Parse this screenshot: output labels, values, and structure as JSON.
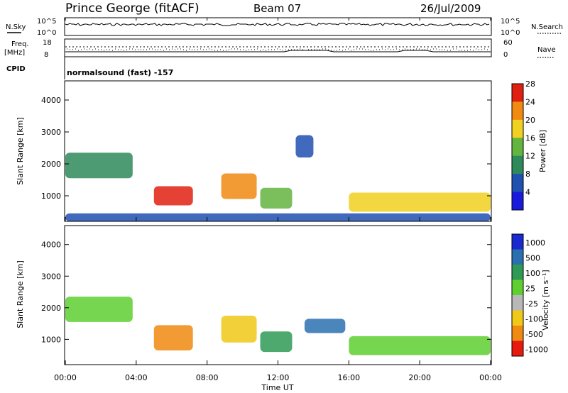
{
  "header": {
    "station": "Prince George (fitACF)",
    "beam": "Beam 07",
    "date": "26/Jul/2009"
  },
  "parameter_panels": {
    "nsky_label": "N.Sky",
    "nsky_ticks": [
      "10^5",
      "10^0"
    ],
    "nsearch_label": "N.Search",
    "nsearch_ticks": [
      "10^5",
      "10^0"
    ],
    "freq_label": "Freq.",
    "freq_unit": "[MHz]",
    "freq_ticks": [
      "18",
      "8"
    ],
    "nave_label": "Nave",
    "nave_ticks": [
      "60",
      "0"
    ],
    "cpid_label": "CPID",
    "cpid_text": "normalsound (fast) -157"
  },
  "chart_data": [
    {
      "type": "heatmap",
      "panel": "power",
      "ylabel": "Slant Range [km]",
      "yticks": [
        "1000",
        "2000",
        "3000",
        "4000"
      ],
      "ylim": [
        200,
        4600
      ],
      "xlim": [
        "00:00",
        "24:00"
      ],
      "colorbar": {
        "label": "Power [dB]",
        "ticks": [
          "4",
          "8",
          "12",
          "16",
          "20",
          "24",
          "28"
        ],
        "colors": [
          "#1a1adc",
          "#2050b0",
          "#2e8a5a",
          "#64b440",
          "#f0d020",
          "#f08a10",
          "#e02010"
        ]
      },
      "regions": [
        {
          "t0": 0.0,
          "t1": 3.8,
          "r0": 1550,
          "r1": 2350,
          "level": 12
        },
        {
          "t0": 5.0,
          "t1": 7.2,
          "r0": 700,
          "r1": 1300,
          "level": 28
        },
        {
          "t0": 8.8,
          "t1": 10.8,
          "r0": 900,
          "r1": 1700,
          "level": 24
        },
        {
          "t0": 11.0,
          "t1": 12.8,
          "r0": 600,
          "r1": 1250,
          "level": 16
        },
        {
          "t0": 13.0,
          "t1": 14.0,
          "r0": 2200,
          "r1": 2900,
          "level": 8
        },
        {
          "t0": 16.0,
          "t1": 24.0,
          "r0": 500,
          "r1": 1100,
          "level": 20
        },
        {
          "t0": 0.0,
          "t1": 24.0,
          "r0": 200,
          "r1": 450,
          "level": 8
        }
      ]
    },
    {
      "type": "heatmap",
      "panel": "velocity",
      "ylabel": "Slant Range [km]",
      "yticks": [
        "1000",
        "2000",
        "3000",
        "4000"
      ],
      "ylim": [
        200,
        4600
      ],
      "xlim": [
        "00:00",
        "24:00"
      ],
      "xticks": [
        "00:00",
        "04:00",
        "08:00",
        "12:00",
        "16:00",
        "20:00",
        "00:00"
      ],
      "xlabel": "Time UT",
      "colorbar": {
        "label": "Velocity [m s⁻¹]",
        "ticks": [
          "1000",
          "500",
          "100",
          "25",
          "-25",
          "-100",
          "-500",
          "-1000"
        ],
        "colors": [
          "#1a2ad0",
          "#2a70b0",
          "#2e9a55",
          "#5fcf30",
          "#b8b8b8",
          "#f0c818",
          "#f08a10",
          "#e81a10"
        ]
      },
      "regions": [
        {
          "t0": 0.0,
          "t1": 3.8,
          "r0": 1550,
          "r1": 2350,
          "level": 0
        },
        {
          "t0": 5.0,
          "t1": 7.2,
          "r0": 650,
          "r1": 1450,
          "level": -500
        },
        {
          "t0": 8.8,
          "t1": 10.8,
          "r0": 900,
          "r1": 1750,
          "level": -100
        },
        {
          "t0": 11.0,
          "t1": 12.8,
          "r0": 600,
          "r1": 1250,
          "level": 100
        },
        {
          "t0": 13.5,
          "t1": 15.8,
          "r0": 1200,
          "r1": 1650,
          "level": 500
        },
        {
          "t0": 16.0,
          "t1": 24.0,
          "r0": 500,
          "r1": 1100,
          "level": 0
        }
      ]
    }
  ]
}
